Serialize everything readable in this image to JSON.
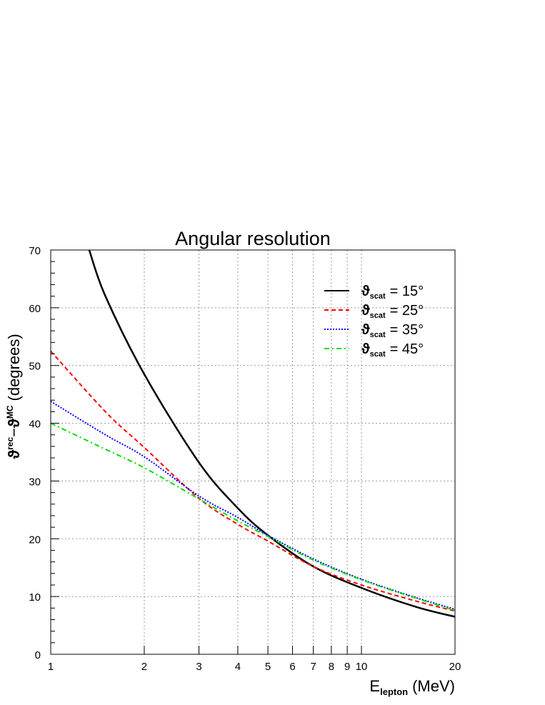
{
  "chart_data": {
    "type": "line",
    "title": "Angular resolution",
    "xlabel": "E_lepton (MeV)",
    "xlabel_main": "E",
    "xlabel_sub": "lepton",
    "xlabel_unit": "(MeV)",
    "ylabel": "ϑ^rec − ϑ^MC (degrees)",
    "ylabel_parts": {
      "sym1": "ϑ",
      "sup1": "rec",
      "dash": "−",
      "sym2": "ϑ",
      "sup2": "MC",
      "unit": "(degrees)"
    },
    "xscale": "log",
    "xlim": [
      1,
      20
    ],
    "ylim": [
      0,
      70
    ],
    "grid": true,
    "legend_position": "top-right",
    "xticks": [
      1,
      2,
      3,
      4,
      5,
      6,
      7,
      8,
      9,
      10,
      20
    ],
    "xtick_labels": [
      "1",
      "2",
      "3",
      "4",
      "5",
      "6",
      "7",
      "8",
      "9",
      "10",
      "20"
    ],
    "yticks": [
      0,
      10,
      20,
      30,
      40,
      50,
      60,
      70
    ],
    "ytick_labels": [
      "0",
      "10",
      "20",
      "30",
      "40",
      "50",
      "60",
      "70"
    ],
    "series": [
      {
        "name": "ϑscat = 15°",
        "legend": {
          "sym": "ϑ",
          "sub": "scat",
          "eq": "= 15°"
        },
        "color": "#000000",
        "style": "solid",
        "x": [
          1.33,
          1.5,
          2,
          3,
          4,
          5,
          7,
          10,
          15,
          20
        ],
        "y": [
          70,
          62,
          48.5,
          33.2,
          25.3,
          20.6,
          15.2,
          11.5,
          8.2,
          6.5
        ]
      },
      {
        "name": "ϑscat = 25°",
        "legend": {
          "sym": "ϑ",
          "sub": "scat",
          "eq": "= 25°"
        },
        "color": "#ff0000",
        "style": "dashed",
        "x": [
          1,
          1.5,
          2,
          3,
          4,
          5,
          7,
          10,
          15,
          20
        ],
        "y": [
          52.5,
          42,
          35.8,
          27,
          22.5,
          19.6,
          15.2,
          12,
          9.2,
          7.5
        ]
      },
      {
        "name": "ϑscat = 35°",
        "legend": {
          "sym": "ϑ",
          "sub": "scat",
          "eq": "= 35°"
        },
        "color": "#0000ff",
        "style": "dotted",
        "x": [
          1,
          1.5,
          2,
          3,
          4,
          5,
          7,
          10,
          15,
          20
        ],
        "y": [
          43.8,
          38,
          34.2,
          27.4,
          23.7,
          20.6,
          16.5,
          13,
          9.8,
          7.8
        ]
      },
      {
        "name": "ϑscat = 45°",
        "legend": {
          "sym": "ϑ",
          "sub": "scat",
          "eq": "= 45°"
        },
        "color": "#00e000",
        "style": "dashdot",
        "x": [
          1,
          1.5,
          2,
          3,
          4,
          5,
          7,
          10,
          15,
          20
        ],
        "y": [
          40,
          35.5,
          32.3,
          26.9,
          23.1,
          20.4,
          16.3,
          12.9,
          9.7,
          7.6
        ]
      }
    ]
  }
}
